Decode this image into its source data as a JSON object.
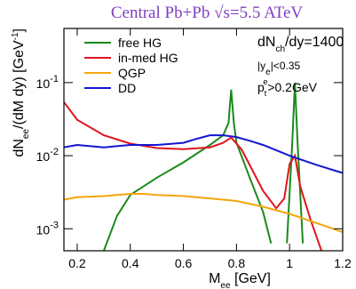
{
  "chart_data": {
    "type": "line",
    "title": "Central Pb+Pb √s=5.5 ATeV",
    "xlabel": [
      "M",
      "ee",
      " [GeV]"
    ],
    "ylabel": [
      "dN",
      "ee",
      "/(dM dy) [GeV",
      "-1",
      "]"
    ],
    "annotations": [
      [
        "dN",
        "ch",
        "/dy=1400"
      ],
      [
        "|y",
        "e",
        "|<0.35"
      ],
      [
        "p",
        "t",
        "e",
        ">0.2GeV"
      ]
    ],
    "log_y": true,
    "xlim": [
      0.15,
      1.2
    ],
    "ylim": [
      0.0005,
      0.55
    ],
    "xticks": [
      0.2,
      0.4,
      0.6,
      0.8,
      1,
      1.2
    ],
    "yticks": [
      {
        "value": 0.001,
        "label": "10",
        "exponent": "-3"
      },
      {
        "value": 0.01,
        "label": "10",
        "exponent": "-2"
      },
      {
        "value": 0.1,
        "label": "10",
        "exponent": "-1"
      }
    ],
    "series": [
      {
        "name": "free HG",
        "color": "#1a8a1a",
        "x": [
          0.3,
          0.35,
          0.4,
          0.5,
          0.6,
          0.7,
          0.75,
          0.77,
          0.78,
          0.79,
          0.8,
          0.85,
          0.9,
          0.93,
          0.95,
          0.99,
          1.01,
          1.02,
          1.03,
          1.05
        ],
        "values": [
          0.0005,
          0.0015,
          0.0029,
          0.005,
          0.0081,
          0.014,
          0.019,
          0.028,
          0.08,
          0.028,
          0.015,
          0.005,
          0.0017,
          0.00063,
          null,
          0.00063,
          0.015,
          0.1,
          0.015,
          0.00063
        ]
      },
      {
        "name": "in-med HG",
        "color": "#e0141e",
        "x": [
          0.15,
          0.2,
          0.3,
          0.4,
          0.5,
          0.6,
          0.7,
          0.75,
          0.78,
          0.82,
          0.9,
          0.95,
          0.98,
          1.0,
          1.02,
          1.04,
          1.08,
          1.12
        ],
        "values": [
          0.054,
          0.031,
          0.019,
          0.0146,
          0.0127,
          0.0123,
          0.013,
          0.015,
          0.0177,
          0.012,
          0.0033,
          0.0019,
          0.0026,
          0.0077,
          0.01,
          0.0038,
          0.0013,
          0.0005
        ]
      },
      {
        "name": "QGP",
        "color": "#f5a50a",
        "x": [
          0.15,
          0.2,
          0.3,
          0.4,
          0.45,
          0.5,
          0.6,
          0.7,
          0.8,
          0.9,
          1.0,
          1.1,
          1.2
        ],
        "values": [
          0.0025,
          0.0027,
          0.0028,
          0.003,
          0.003,
          0.0029,
          0.0028,
          0.0026,
          0.0024,
          0.002,
          0.0016,
          0.0012,
          0.0009
        ]
      },
      {
        "name": "DD",
        "color": "#1414d2",
        "x": [
          0.15,
          0.2,
          0.3,
          0.4,
          0.5,
          0.6,
          0.65,
          0.7,
          0.75,
          0.8,
          0.85,
          0.9,
          1.0,
          1.1,
          1.2
        ],
        "values": [
          0.013,
          0.014,
          0.013,
          0.014,
          0.014,
          0.015,
          0.017,
          0.019,
          0.019,
          0.018,
          0.016,
          0.014,
          0.01,
          0.0075,
          0.0058
        ]
      }
    ]
  }
}
